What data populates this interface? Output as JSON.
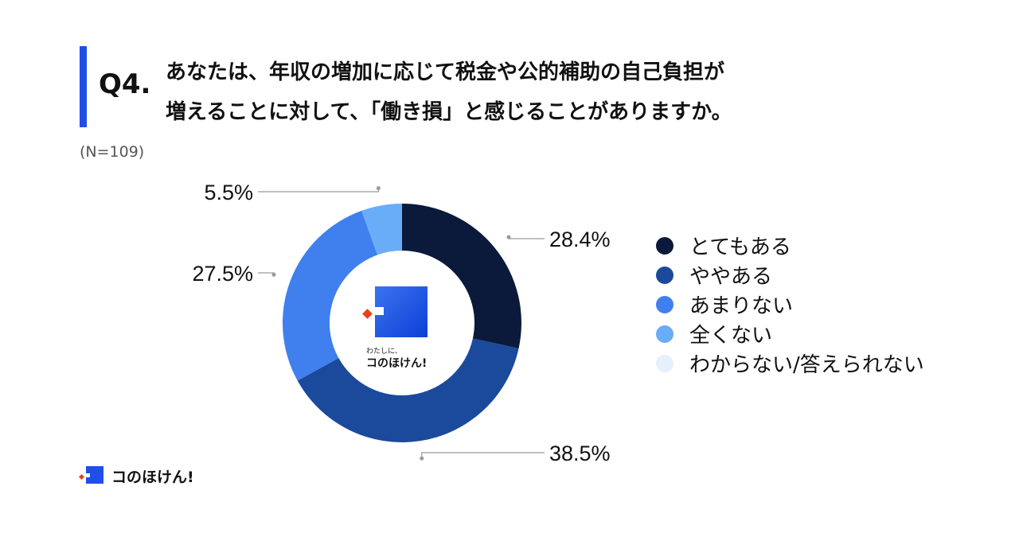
{
  "question": {
    "number": "Q4.",
    "line1": "あなたは、年収の増加に応じて税金や公的補助の自己負担が",
    "line2": "増えることに対して、「働き損」と感じることがありますか。"
  },
  "sample_size": "(N=109)",
  "colors": {
    "accent": "#1f4fe8",
    "brand_red": "#e8411f"
  },
  "chart_data": {
    "type": "pie",
    "donut": true,
    "legend_position": "right",
    "categories": [
      "とてもある",
      "ややある",
      "あまりない",
      "全くない",
      "わからない/答えられない"
    ],
    "values": [
      28.4,
      38.5,
      27.5,
      5.5,
      0.0
    ],
    "labels": [
      "28.4%",
      "38.5%",
      "27.5%",
      "5.5%",
      ""
    ],
    "colors": [
      "#0b1a3a",
      "#1b4a9c",
      "#3f80ee",
      "#69acf8",
      "#e6f0fc"
    ]
  },
  "center_logo": {
    "tagline": "わたしに、",
    "brand": "コのほけん!"
  },
  "footer": {
    "brand": "コのほけん!"
  }
}
